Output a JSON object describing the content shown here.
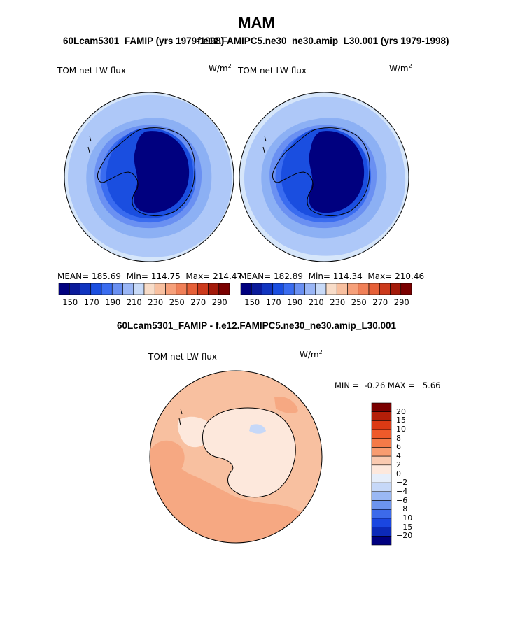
{
  "title": "MAM",
  "panel_left": {
    "case_title": "60Lcam5301_FAMIP (yrs 1979-1998)",
    "variable": "TOM net LW flux",
    "units": "W/m",
    "units_power": "2",
    "stats": {
      "mean": "MEAN= 185.69",
      "min": "Min= 114.75",
      "max": "Max= 214.47"
    }
  },
  "panel_right": {
    "case_title": "f.e12.FAMIPC5.ne30_ne30.amip_L30.001 (yrs 1979-1998)",
    "variable": "TOM net LW flux",
    "units": "W/m",
    "units_power": "2",
    "stats": {
      "mean": "MEAN= 182.89",
      "min": "Min= 114.34",
      "max": "Max= 210.46"
    }
  },
  "panel_diff": {
    "title": "60Lcam5301_FAMIP - f.e12.FAMIPC5.ne30_ne30.amip_L30.001",
    "variable": "TOM net LW flux",
    "units": "W/m",
    "units_power": "2",
    "minmax": "MIN =  -0.26 MAX =   5.66"
  },
  "colorbar_abs": {
    "colors": [
      "#00007f",
      "#0a1a9a",
      "#1034c0",
      "#1a4ee0",
      "#3a6cf0",
      "#6a90f2",
      "#9ab6f6",
      "#c8daf8",
      "#f8dcc8",
      "#f8c0a0",
      "#f6a07a",
      "#f08058",
      "#e66038",
      "#cc3a1c",
      "#a41a0a",
      "#7a0000"
    ],
    "ticks": [
      "150",
      "170",
      "190",
      "210",
      "230",
      "250",
      "270",
      "290"
    ]
  },
  "colorbar_diff": {
    "colors": [
      "#7a0000",
      "#b41e08",
      "#dc3a14",
      "#ee5a2a",
      "#f47a48",
      "#f89c70",
      "#facab0",
      "#fde8dc",
      "#e6eefa",
      "#c6d8f8",
      "#9ab8f4",
      "#6c94ee",
      "#3c6aea",
      "#1a46e0",
      "#0c2ab8",
      "#00007f"
    ],
    "labels": [
      "20",
      "15",
      "10",
      "8",
      "6",
      "4",
      "2",
      "0",
      "−2",
      "−4",
      "−6",
      "−8",
      "−10",
      "−15",
      "−20"
    ]
  },
  "map_colors": {
    "abs_ocean_far": "#d6e6fa",
    "abs_ocean": "#aec8f8",
    "abs_ocean_inner": "#8cb0f4",
    "abs_mid": "#6a90f2",
    "abs_coast": "#3a6cf0",
    "abs_shelf": "#1a4ee0",
    "abs_interior": "#00007f",
    "diff_base": "#f8c0a0",
    "diff_warm": "#f6a882",
    "diff_land": "#fde8dc",
    "diff_blue": "#c6d8f8",
    "coast_line": "#000000"
  }
}
